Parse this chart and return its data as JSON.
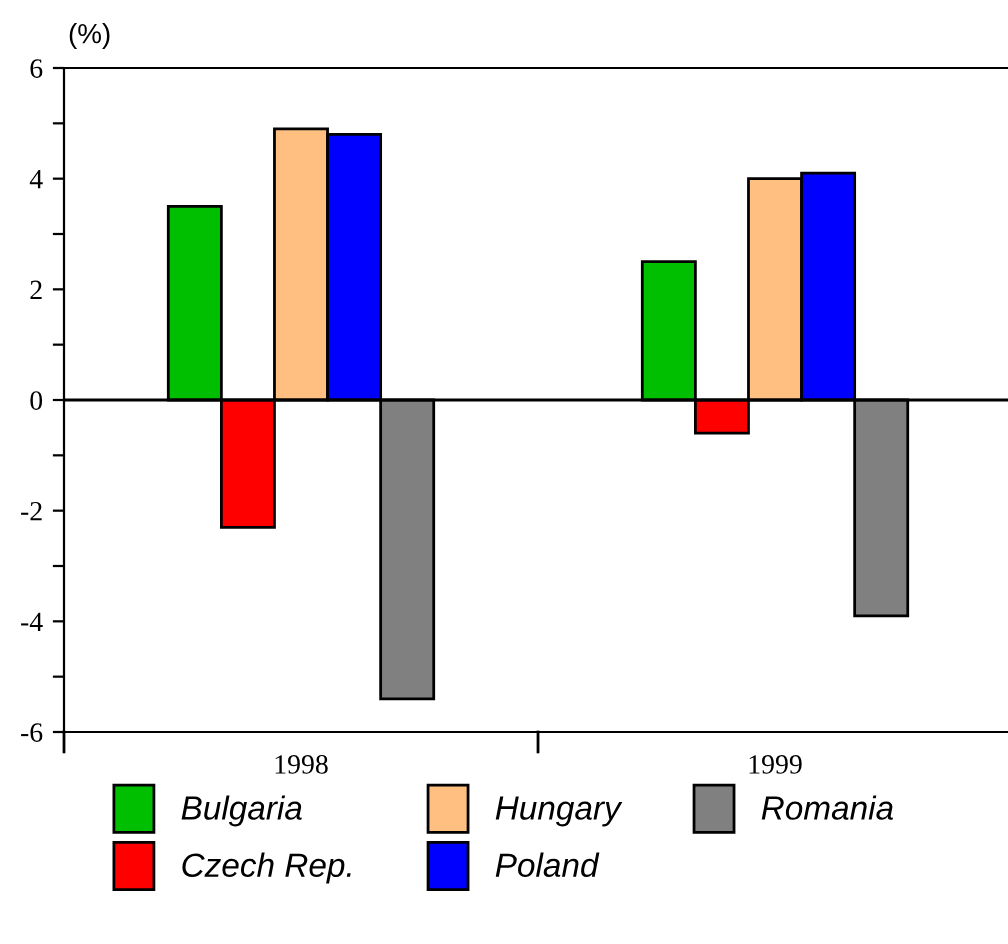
{
  "chart_data": {
    "type": "bar",
    "ylabel": "(%)",
    "categories": [
      "1998",
      "1999"
    ],
    "series": [
      {
        "name": "Bulgaria",
        "color": "#00bf00",
        "values": [
          3.5,
          2.5
        ]
      },
      {
        "name": "Czech Rep.",
        "color": "#ff0000",
        "values": [
          -2.3,
          -0.6
        ]
      },
      {
        "name": "Hungary",
        "color": "#ffbf80",
        "values": [
          4.9,
          4.0
        ]
      },
      {
        "name": "Poland",
        "color": "#0000ff",
        "values": [
          4.8,
          4.1
        ]
      },
      {
        "name": "Romania",
        "color": "#808080",
        "values": [
          -5.4,
          -3.9
        ]
      }
    ],
    "ylim": [
      -6,
      6
    ],
    "yticks": [
      -6,
      {
        "value": -5,
        "label": null
      },
      -4,
      {
        "value": -3,
        "label": null
      },
      -2,
      {
        "value": -1,
        "label": null
      },
      0,
      {
        "value": 1,
        "label": null
      },
      2,
      {
        "value": 3,
        "label": null
      },
      4,
      {
        "value": 5,
        "label": null
      },
      6
    ],
    "ref_lines": [
      {
        "axis": "y",
        "value": 0,
        "color": "#000000"
      }
    ],
    "grid": false,
    "legend": "bottom"
  }
}
